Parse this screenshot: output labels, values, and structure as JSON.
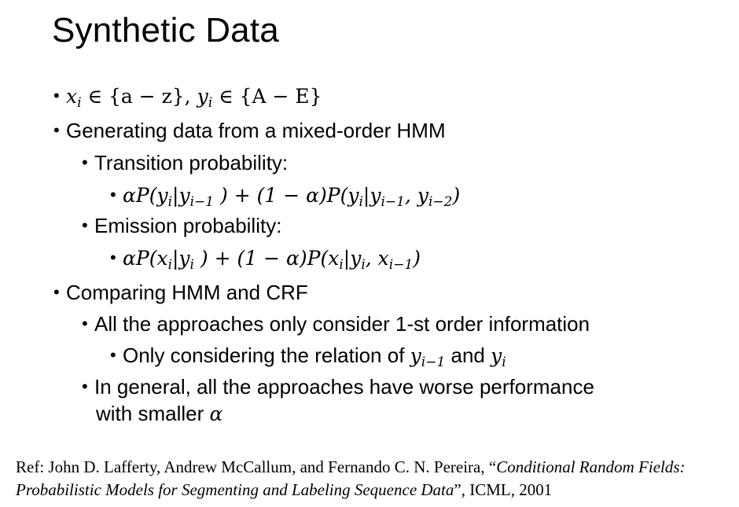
{
  "slide": {
    "title": "Synthetic Data"
  },
  "bullets": {
    "domains": {
      "x": "x",
      "x_sub": "i",
      "x_set": " ∈ {a − z}, ",
      "y": "y",
      "y_sub": "i",
      "y_set": " ∈ {A − E}"
    },
    "generating": "Generating data from a mixed-order HMM",
    "transition_label": "Transition probability:",
    "transition_formula": {
      "part1": "αP(y",
      "s1": "i",
      "part2": "|y",
      "s2": "i−1",
      "part3": " ) + (1 − α)P(y",
      "s3": "i",
      "part4": "|y",
      "s4": "i−1",
      "part5": ", y",
      "s5": "i−2",
      "part6": ")"
    },
    "emission_label": "Emission probability:",
    "emission_formula": {
      "part1": "αP(x",
      "s1": "i",
      "part2": "|y",
      "s2": "i",
      "part3": " ) + (1 − α)P(x",
      "s3": "i",
      "part4": "|y",
      "s4": "i",
      "part5": ", x",
      "s5": "i−1",
      "part6": ")"
    },
    "comparing": "Comparing HMM and CRF",
    "first_order": "All the approaches only consider 1-st order information",
    "relation": {
      "text_before": "Only considering the relation of ",
      "y1": "y",
      "y1_sub": "i−1",
      "text_and": " and ",
      "y2": "y",
      "y2_sub": "i"
    },
    "general_line1": "In general, all the approaches have worse performance",
    "general_line2_text": "with smaller ",
    "general_line2_alpha": "α"
  },
  "reference": {
    "prefix": "Ref: John D. Lafferty, Andrew McCallum, and Fernando C. N. Pereira, “",
    "title": "Conditional Random Fields: Probabilistic Models for Segmenting and Labeling Sequence Data",
    "suffix": "”, ICML, 2001"
  }
}
